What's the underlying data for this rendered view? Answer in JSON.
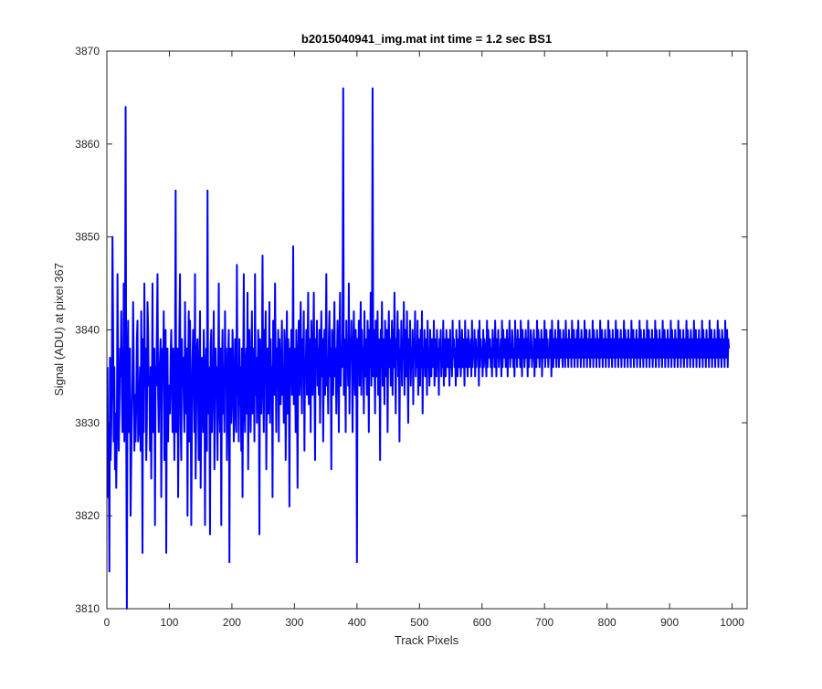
{
  "chart_data": {
    "type": "line",
    "title": "b2015040941_img.mat int time = 1.2 sec   BS1",
    "xlabel": "Track Pixels",
    "ylabel": "Signal (ADU) at pixel 367",
    "xlim": [
      0,
      1024
    ],
    "ylim": [
      3810,
      3870
    ],
    "xticks": [
      0,
      100,
      200,
      300,
      400,
      500,
      600,
      700,
      800,
      900,
      1000
    ],
    "yticks": [
      3810,
      3820,
      3830,
      3840,
      3850,
      3860,
      3870
    ],
    "xtick_labels": [
      "0",
      "100",
      "200",
      "300",
      "400",
      "500",
      "600",
      "700",
      "800",
      "900",
      "1000"
    ],
    "ytick_labels": [
      "3810",
      "3820",
      "3830",
      "3840",
      "3850",
      "3860",
      "3870"
    ],
    "grid": false,
    "series": [
      {
        "color": "#0000ff",
        "x_start": 1,
        "x_step": 1,
        "values": [
          3836,
          3822,
          3830,
          3814,
          3837,
          3826,
          3829,
          3835,
          3850,
          3840,
          3828,
          3836,
          3825,
          3831,
          3823,
          3829,
          3846,
          3834,
          3827,
          3831,
          3838,
          3835,
          3842,
          3833,
          3829,
          3831,
          3845,
          3828,
          3837,
          3864,
          3830,
          3810,
          3836,
          3841,
          3829,
          3833,
          3838,
          3820,
          3826,
          3831,
          3835,
          3843,
          3836,
          3827,
          3833,
          3828,
          3832,
          3839,
          3841,
          3828,
          3829,
          3833,
          3836,
          3827,
          3842,
          3834,
          3816,
          3839,
          3829,
          3845,
          3834,
          3838,
          3826,
          3830,
          3843,
          3840,
          3834,
          3835,
          3827,
          3836,
          3824,
          3833,
          3845,
          3829,
          3836,
          3838,
          3819,
          3836,
          3834,
          3840,
          3846,
          3833,
          3829,
          3835,
          3837,
          3839,
          3822,
          3831,
          3838,
          3836,
          3842,
          3826,
          3833,
          3840,
          3816,
          3836,
          3838,
          3828,
          3834,
          3833,
          3831,
          3837,
          3840,
          3835,
          3829,
          3838,
          3833,
          3826,
          3836,
          3855,
          3829,
          3834,
          3838,
          3822,
          3832,
          3840,
          3846,
          3830,
          3826,
          3839,
          3834,
          3837,
          3832,
          3829,
          3843,
          3835,
          3831,
          3838,
          3820,
          3836,
          3842,
          3828,
          3841,
          3834,
          3819,
          3830,
          3837,
          3840,
          3835,
          3829,
          3846,
          3824,
          3831,
          3838,
          3839,
          3833,
          3826,
          3836,
          3842,
          3823,
          3831,
          3837,
          3833,
          3829,
          3840,
          3836,
          3819,
          3834,
          3838,
          3827,
          3855,
          3831,
          3836,
          3833,
          3818,
          3838,
          3840,
          3829,
          3833,
          3835,
          3842,
          3825,
          3830,
          3838,
          3833,
          3836,
          3826,
          3835,
          3845,
          3832,
          3829,
          3838,
          3819,
          3835,
          3840,
          3831,
          3836,
          3829,
          3842,
          3834,
          3838,
          3826,
          3832,
          3837,
          3840,
          3815,
          3835,
          3838,
          3830,
          3833,
          3840,
          3836,
          3828,
          3831,
          3839,
          3834,
          3829,
          3847,
          3833,
          3835,
          3828,
          3839,
          3832,
          3836,
          3827,
          3838,
          3822,
          3835,
          3846,
          3832,
          3829,
          3836,
          3838,
          3831,
          3844,
          3825,
          3833,
          3840,
          3836,
          3829,
          3835,
          3842,
          3831,
          3836,
          3838,
          3828,
          3846,
          3833,
          3837,
          3830,
          3834,
          3840,
          3836,
          3818,
          3839,
          3833,
          3831,
          3837,
          3848,
          3834,
          3829,
          3840,
          3836,
          3842,
          3825,
          3834,
          3838,
          3831,
          3836,
          3843,
          3830,
          3839,
          3833,
          3836,
          3822,
          3841,
          3838,
          3833,
          3845,
          3836,
          3829,
          3838,
          3834,
          3840,
          3828,
          3839,
          3835,
          3832,
          3837,
          3841,
          3833,
          3836,
          3830,
          3840,
          3838,
          3826,
          3835,
          3842,
          3831,
          3839,
          3836,
          3821,
          3838,
          3834,
          3840,
          3833,
          3837,
          3849,
          3832,
          3838,
          3836,
          3829,
          3840,
          3835,
          3823,
          3837,
          3841,
          3833,
          3838,
          3843,
          3835,
          3831,
          3839,
          3836,
          3842,
          3827,
          3837,
          3835,
          3840,
          3833,
          3838,
          3844,
          3832,
          3836,
          3839,
          3829,
          3841,
          3837,
          3833,
          3838,
          3844,
          3835,
          3826,
          3839,
          3836,
          3841,
          3834,
          3838,
          3833,
          3840,
          3830,
          3837,
          3842,
          3835,
          3839,
          3828,
          3836,
          3840,
          3833,
          3838,
          3846,
          3834,
          3837,
          3831,
          3839,
          3842,
          3835,
          3838,
          3825,
          3840,
          3836,
          3833,
          3839,
          3843,
          3835,
          3838,
          3831,
          3837,
          3841,
          3836,
          3829,
          3839,
          3844,
          3834,
          3838,
          3836,
          3840,
          3866,
          3833,
          3839,
          3837,
          3829,
          3841,
          3836,
          3838,
          3834,
          3845,
          3831,
          3839,
          3837,
          3841,
          3835,
          3829,
          3838,
          3842,
          3836,
          3833,
          3840,
          3837,
          3815,
          3839,
          3836,
          3841,
          3834,
          3838,
          3843,
          3833,
          3840,
          3836,
          3838,
          3831,
          3842,
          3835,
          3839,
          3837,
          3833,
          3841,
          3838,
          3829,
          3840,
          3836,
          3844,
          3834,
          3838,
          3866,
          3835,
          3840,
          3837,
          3831,
          3841,
          3838,
          3835,
          3842,
          3833,
          3839,
          3837,
          3826,
          3840,
          3836,
          3843,
          3834,
          3839,
          3838,
          3832,
          3841,
          3837,
          3835,
          3840,
          3829,
          3838,
          3842,
          3836,
          3839,
          3834,
          3837,
          3841,
          3833,
          3840,
          3836,
          3844,
          3838,
          3831,
          3839,
          3837,
          3842,
          3835,
          3840,
          3828,
          3838,
          3836,
          3841,
          3834,
          3839,
          3837,
          3843,
          3833,
          3840,
          3838,
          3835,
          3842,
          3836,
          3830,
          3839,
          3837,
          3841,
          3834,
          3838,
          3836,
          3840,
          3832,
          3839,
          3837,
          3842,
          3835,
          3838,
          3836,
          3841,
          3833,
          3839,
          3837,
          3834,
          3840,
          3836,
          3842,
          3831,
          3838,
          3836,
          3840,
          3835,
          3837,
          3839,
          3833,
          3841,
          3836,
          3838,
          3834,
          3840,
          3837,
          3835,
          3839,
          3838,
          3836,
          3841,
          3834,
          3837,
          3839,
          3835,
          3840,
          3836,
          3838,
          3833,
          3839,
          3837,
          3840,
          3835,
          3838,
          3836,
          3841,
          3834,
          3839,
          3837,
          3835,
          3840,
          3838,
          3836,
          3839,
          3837,
          3834,
          3840,
          3836,
          3838,
          3835,
          3841,
          3837,
          3839,
          3836,
          3838,
          3834,
          3840,
          3837,
          3835,
          3839,
          3836,
          3841,
          3838,
          3835,
          3837,
          3840,
          3836,
          3839,
          3838,
          3834,
          3841,
          3837,
          3836,
          3839,
          3835,
          3840,
          3838,
          3836,
          3837,
          3839,
          3835,
          3841,
          3836,
          3838,
          3837,
          3840,
          3835,
          3839,
          3836,
          3838,
          3837,
          3840,
          3834,
          3841,
          3836,
          3839,
          3837,
          3838,
          3835,
          3840,
          3836,
          3839,
          3838,
          3837,
          3835,
          3841,
          3836,
          3840,
          3838,
          3837,
          3839,
          3836,
          3838,
          3835,
          3840,
          3837,
          3839,
          3836,
          3841,
          3838,
          3835,
          3839,
          3837,
          3840,
          3836,
          3838,
          3837,
          3839,
          3835,
          3841,
          3836,
          3840,
          3838,
          3837,
          3839,
          3836,
          3838,
          3840,
          3835,
          3839,
          3837,
          3841,
          3836,
          3838,
          3837,
          3840,
          3839,
          3836,
          3838,
          3835,
          3841,
          3837,
          3839,
          3836,
          3840,
          3838,
          3837,
          3839,
          3836,
          3841,
          3838,
          3835,
          3840,
          3837,
          3839,
          3836,
          3838,
          3840,
          3837,
          3839,
          3835,
          3841,
          3836,
          3838,
          3837,
          3840,
          3839,
          3836,
          3838,
          3837,
          3840,
          3835,
          3839,
          3838,
          3836,
          3841,
          3837,
          3840,
          3838,
          3836,
          3839,
          3837,
          3840,
          3835,
          3838,
          3839,
          3837,
          3841,
          3836,
          3838,
          3840,
          3837,
          3839,
          3836,
          3838,
          3837,
          3840,
          3839,
          3835,
          3841,
          3838,
          3836,
          3839,
          3837,
          3840,
          3838,
          3836,
          3839,
          3837,
          3841,
          3836,
          3838,
          3840,
          3837,
          3839,
          3838,
          3836,
          3840,
          3837,
          3839,
          3836,
          3841,
          3838,
          3837,
          3839,
          3836,
          3840,
          3838,
          3837,
          3839,
          3836,
          3841,
          3837,
          3838,
          3840,
          3836,
          3839,
          3837,
          3838,
          3840,
          3836,
          3841,
          3838,
          3837,
          3839,
          3836,
          3840,
          3838,
          3837,
          3839,
          3836,
          3841,
          3837,
          3838,
          3840,
          3836,
          3839,
          3837,
          3838,
          3840,
          3836,
          3839,
          3838,
          3837,
          3841,
          3836,
          3840,
          3838,
          3837,
          3839,
          3836,
          3840,
          3838,
          3837,
          3839,
          3836,
          3841,
          3837,
          3838,
          3840,
          3836,
          3839,
          3838,
          3837,
          3840,
          3836,
          3839,
          3838,
          3837,
          3841,
          3836,
          3840,
          3838,
          3837,
          3839,
          3836,
          3840,
          3838,
          3837,
          3839,
          3836,
          3841,
          3837,
          3838,
          3840,
          3836,
          3839,
          3838,
          3837,
          3840,
          3836,
          3839,
          3838,
          3837,
          3841,
          3836,
          3840,
          3838,
          3837,
          3839,
          3836,
          3840,
          3838,
          3837,
          3839,
          3836,
          3841,
          3837,
          3838,
          3840,
          3836,
          3839,
          3838,
          3837,
          3840,
          3836,
          3839,
          3838,
          3837,
          3841,
          3836,
          3840,
          3838,
          3837,
          3839,
          3836,
          3840,
          3838,
          3837,
          3839,
          3836,
          3841,
          3837,
          3838,
          3840,
          3836,
          3839,
          3838,
          3837,
          3840,
          3836,
          3839,
          3838,
          3837,
          3841,
          3836,
          3840,
          3838,
          3837,
          3839,
          3836,
          3840,
          3838,
          3837,
          3839,
          3836,
          3841,
          3837,
          3838,
          3840,
          3836,
          3839,
          3838,
          3837,
          3840,
          3836,
          3839,
          3838,
          3837,
          3841,
          3836,
          3840,
          3838,
          3837,
          3839,
          3836,
          3840,
          3838,
          3837,
          3839,
          3836,
          3841,
          3837,
          3838,
          3840,
          3836,
          3839,
          3838,
          3837,
          3840,
          3836,
          3839,
          3838,
          3837,
          3841,
          3836,
          3840,
          3838,
          3837,
          3839,
          3836,
          3840,
          3838,
          3837,
          3839,
          3836,
          3841,
          3837,
          3838,
          3840,
          3836,
          3839,
          3838,
          3837,
          3840,
          3836,
          3839,
          3838,
          3837,
          3841,
          3836,
          3840,
          3838,
          3837,
          3839,
          3836,
          3840,
          3838,
          3837,
          3839,
          3836,
          3841,
          3837,
          3838,
          3840,
          3836,
          3839,
          3838,
          3837,
          3840,
          3836,
          3839,
          3838,
          3837,
          3841,
          3836,
          3840,
          3838,
          3837,
          3839,
          3836,
          3840,
          3838,
          3837,
          3839,
          3836,
          3841,
          3837,
          3838,
          3840,
          3836,
          3839,
          3838
        ]
      }
    ]
  }
}
